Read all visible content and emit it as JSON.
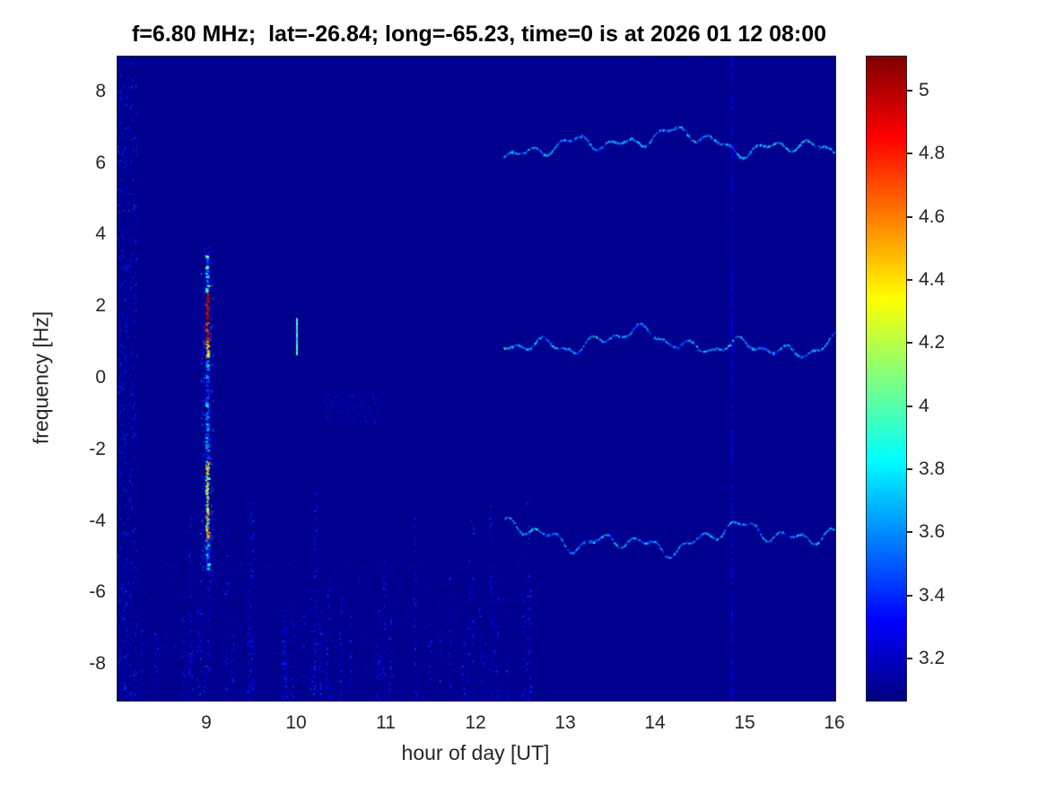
{
  "chart_data": {
    "type": "heatmap",
    "title": "f=6.80 MHz;  lat=-26.84; long=-65.23, time=0 is at 2026 01 12 08:00",
    "xlabel": "hour of day [UT]",
    "ylabel": "frequency [Hz]",
    "xlim": [
      8,
      16
    ],
    "ylim": [
      -9,
      9
    ],
    "xticks": [
      9,
      10,
      11,
      12,
      13,
      14,
      15,
      16
    ],
    "yticks": [
      8,
      6,
      4,
      2,
      0,
      -2,
      -4,
      -6,
      -8
    ],
    "colormap": "jet",
    "clim": [
      3.07,
      5.11
    ],
    "colorbar_ticks": [
      5,
      4.8,
      4.6,
      4.4,
      4.2,
      4,
      3.8,
      3.6,
      3.4,
      3.2
    ],
    "background_value": 3.1,
    "grid": false,
    "legend": false,
    "seed": 1337,
    "features": {
      "burst": {
        "hour": 9.0,
        "segments": [
          {
            "f0": 2.4,
            "f1": 3.5,
            "v": 3.7,
            "jitter": 0.45
          },
          {
            "f0": 1.15,
            "f1": 2.4,
            "v": 4.95,
            "jitter": 0.3
          },
          {
            "f0": 0.6,
            "f1": 1.15,
            "v": 4.55,
            "jitter": 0.35
          },
          {
            "f0": -2.3,
            "f1": 0.6,
            "v": 3.5,
            "jitter": 0.4
          },
          {
            "f0": -4.5,
            "f1": -2.3,
            "v": 4.3,
            "jitter": 0.35
          },
          {
            "f0": -5.3,
            "f1": -4.5,
            "v": 3.6,
            "jitter": 0.3
          }
        ]
      },
      "tick_line": {
        "hour": 10.0,
        "f0": 0.7,
        "f1": 1.7,
        "v": 3.95
      },
      "speckle_patch": {
        "hour_min": 10.3,
        "hour_max": 10.95,
        "freq_min": -1.3,
        "freq_max": -0.35,
        "spread": 0.35
      },
      "wavy_traces": [
        {
          "hour_min": 12.3,
          "hour_max": 16.0,
          "freq_center": 6.6,
          "amplitude": 0.35
        },
        {
          "hour_min": 12.3,
          "hour_max": 16.0,
          "freq_center": 1.0,
          "amplitude": 0.35
        },
        {
          "hour_min": 12.3,
          "hour_max": 16.0,
          "freq_center": -4.45,
          "amplitude": 0.4
        }
      ],
      "vertical_stripe": {
        "hour": 14.85,
        "spread": 0.22
      },
      "noise_region": {
        "hour_min": 8.05,
        "hour_max": 12.7,
        "freq_top": -5.0,
        "spread": 0.35
      },
      "left_edge": {
        "hour_max": 8.22,
        "spread": 0.4
      }
    }
  }
}
